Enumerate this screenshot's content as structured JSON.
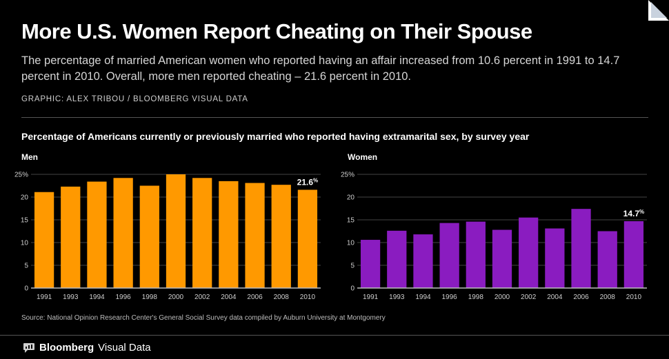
{
  "header": {
    "title": "More U.S. Women Report Cheating on Their Spouse",
    "subtitle": "The percentage of married American women who reported having an affair increased from 10.6 percent in 1991 to 14.7 percent in 2010. Overall, more men reported cheating – 21.6 percent in 2010.",
    "credit": "GRAPHIC: ALEX TRIBOU / BLOOMBERG VISUAL DATA"
  },
  "chart_heading": "Percentage of Americans currently or previously married who reported having extramarital sex, by survey year",
  "source": "Source: National Opinion Research Center's General Social Survey data compiled by Auburn University at Montgomery",
  "footer": {
    "brand_bold": "Bloomberg",
    "brand_light": "Visual Data",
    "logo_icon": "speech-bubble-icon"
  },
  "colors": {
    "men": "#ff9900",
    "women": "#8a1cc0",
    "background": "#000000",
    "grid": "#444444"
  },
  "chart_data": [
    {
      "type": "bar",
      "panel_label": "Men",
      "categories": [
        "1991",
        "1993",
        "1994",
        "1996",
        "1998",
        "2000",
        "2002",
        "2004",
        "2006",
        "2008",
        "2010"
      ],
      "values": [
        21.1,
        22.3,
        23.4,
        24.2,
        22.5,
        25.0,
        24.2,
        23.5,
        23.1,
        22.7,
        21.6
      ],
      "yticks": [
        "25%",
        "20",
        "15",
        "10",
        "5",
        "0"
      ],
      "ylim": [
        0,
        25
      ],
      "annotation": {
        "value": "21.6",
        "unit": "%"
      },
      "grid": true
    },
    {
      "type": "bar",
      "panel_label": "Women",
      "categories": [
        "1991",
        "1993",
        "1994",
        "1996",
        "1998",
        "2000",
        "2002",
        "2004",
        "2006",
        "2008",
        "2010"
      ],
      "values": [
        10.6,
        12.6,
        11.8,
        14.3,
        14.6,
        12.8,
        15.5,
        13.1,
        17.4,
        12.5,
        14.7
      ],
      "yticks": [
        "25%",
        "20",
        "15",
        "10",
        "5",
        "0"
      ],
      "ylim": [
        0,
        25
      ],
      "annotation": {
        "value": "14.7",
        "unit": "%"
      },
      "grid": true
    }
  ]
}
